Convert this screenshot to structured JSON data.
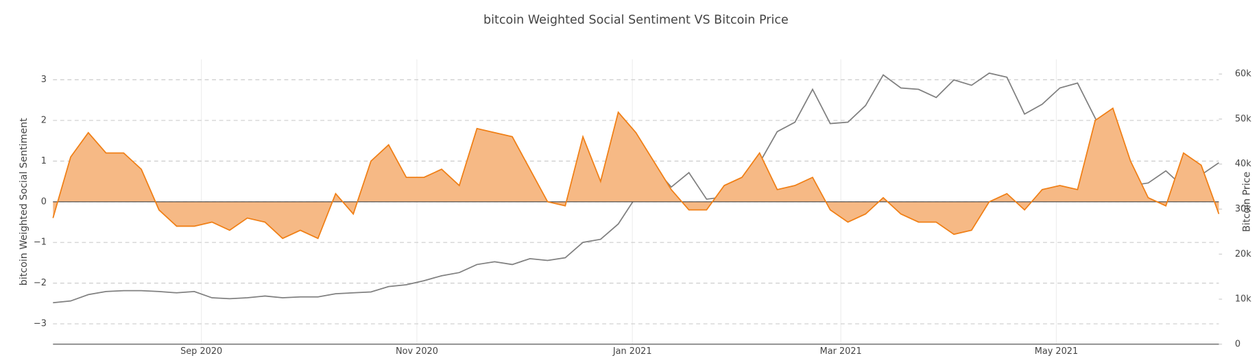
{
  "chart_data": {
    "type": "line",
    "title": "bitcoin Weighted Social Sentiment VS Bitcoin Price",
    "y_label": "bitcoin Weighted Social Sentiment",
    "y2_label": "Bitcoin Price",
    "x": [
      "2020-07-21",
      "2020-07-26",
      "2020-07-31",
      "2020-08-05",
      "2020-08-10",
      "2020-08-15",
      "2020-08-20",
      "2020-08-25",
      "2020-08-30",
      "2020-09-04",
      "2020-09-09",
      "2020-09-14",
      "2020-09-19",
      "2020-09-24",
      "2020-09-29",
      "2020-10-04",
      "2020-10-09",
      "2020-10-14",
      "2020-10-19",
      "2020-10-24",
      "2020-10-29",
      "2020-11-03",
      "2020-11-08",
      "2020-11-13",
      "2020-11-18",
      "2020-11-23",
      "2020-11-28",
      "2020-12-03",
      "2020-12-08",
      "2020-12-13",
      "2020-12-18",
      "2020-12-23",
      "2020-12-28",
      "2021-01-02",
      "2021-01-07",
      "2021-01-12",
      "2021-01-17",
      "2021-01-22",
      "2021-01-27",
      "2021-02-01",
      "2021-02-06",
      "2021-02-11",
      "2021-02-16",
      "2021-02-21",
      "2021-02-26",
      "2021-03-03",
      "2021-03-08",
      "2021-03-13",
      "2021-03-18",
      "2021-03-23",
      "2021-03-28",
      "2021-04-02",
      "2021-04-07",
      "2021-04-12",
      "2021-04-17",
      "2021-04-22",
      "2021-04-27",
      "2021-05-02",
      "2021-05-07",
      "2021-05-12",
      "2021-05-17",
      "2021-05-22",
      "2021-05-27",
      "2021-06-01",
      "2021-06-06",
      "2021-06-11",
      "2021-06-16"
    ],
    "xlim": [
      "2020-07-21",
      "2021-06-16"
    ],
    "xticks": [
      {
        "value": "2020-09-01",
        "label": "Sep 2020"
      },
      {
        "value": "2020-11-01",
        "label": "Nov 2020"
      },
      {
        "value": "2021-01-01",
        "label": "Jan 2021"
      },
      {
        "value": "2021-03-01",
        "label": "Mar 2021"
      },
      {
        "value": "2021-05-01",
        "label": "May 2021"
      }
    ],
    "ylim": [
      -3.5,
      3.5
    ],
    "yticks": [
      {
        "value": -3,
        "label": "−3"
      },
      {
        "value": -2,
        "label": "−2"
      },
      {
        "value": -1,
        "label": "−1"
      },
      0,
      1,
      2,
      3
    ],
    "y2lim": [
      0,
      63250
    ],
    "y2ticks": [
      0,
      {
        "value": 10000,
        "label": "10k"
      },
      {
        "value": 20000,
        "label": "20k"
      },
      {
        "value": 30000,
        "label": "30k"
      },
      {
        "value": 40000,
        "label": "40k"
      },
      {
        "value": 50000,
        "label": "50k"
      },
      {
        "value": 60000,
        "label": "60k"
      }
    ],
    "series": [
      {
        "name": "bitcoin Weighted Social Sentiment",
        "color": "#f07f15",
        "fill": "#f6b985",
        "values": [
          -0.4,
          1.1,
          1.7,
          1.2,
          1.2,
          0.8,
          -0.2,
          -0.6,
          -0.6,
          -0.5,
          -0.7,
          -0.4,
          -0.5,
          -0.9,
          -0.7,
          -0.9,
          0.2,
          -0.3,
          1.0,
          1.4,
          0.6,
          0.6,
          0.8,
          0.4,
          1.8,
          1.7,
          1.6,
          0.8,
          0.0,
          -0.1,
          1.6,
          0.5,
          2.2,
          1.7,
          1.0,
          0.3,
          -0.2,
          -0.2,
          0.4,
          0.6,
          1.2,
          0.3,
          0.4,
          0.6,
          -0.2,
          -0.5,
          -0.3,
          0.1,
          -0.3,
          -0.5,
          -0.5,
          -0.8,
          -0.7,
          0.0,
          0.2,
          -0.2,
          0.3,
          0.4,
          0.3,
          2.0,
          2.3,
          1.0,
          0.1,
          -0.1,
          1.2,
          0.9,
          -0.3
        ]
      },
      {
        "name": "Bitcoin Price",
        "color": "#808080",
        "axis": "y2",
        "values": [
          9200,
          9600,
          11000,
          11700,
          11900,
          11900,
          11700,
          11400,
          11700,
          10300,
          10100,
          10300,
          10700,
          10300,
          10500,
          10500,
          11200,
          11400,
          11600,
          12800,
          13200,
          14100,
          15200,
          15900,
          17700,
          18300,
          17700,
          19000,
          18600,
          19200,
          22600,
          23300,
          26700,
          32700,
          39400,
          34900,
          38100,
          32200,
          32700,
          34500,
          40300,
          47200,
          49300,
          56600,
          49000,
          49300,
          53000,
          59800,
          56900,
          56600,
          54800,
          58700,
          57500,
          60200,
          59300,
          51100,
          53300,
          56900,
          58000,
          50200,
          43000,
          35200,
          35800,
          38500,
          34900,
          37600,
          40300
        ]
      }
    ]
  }
}
